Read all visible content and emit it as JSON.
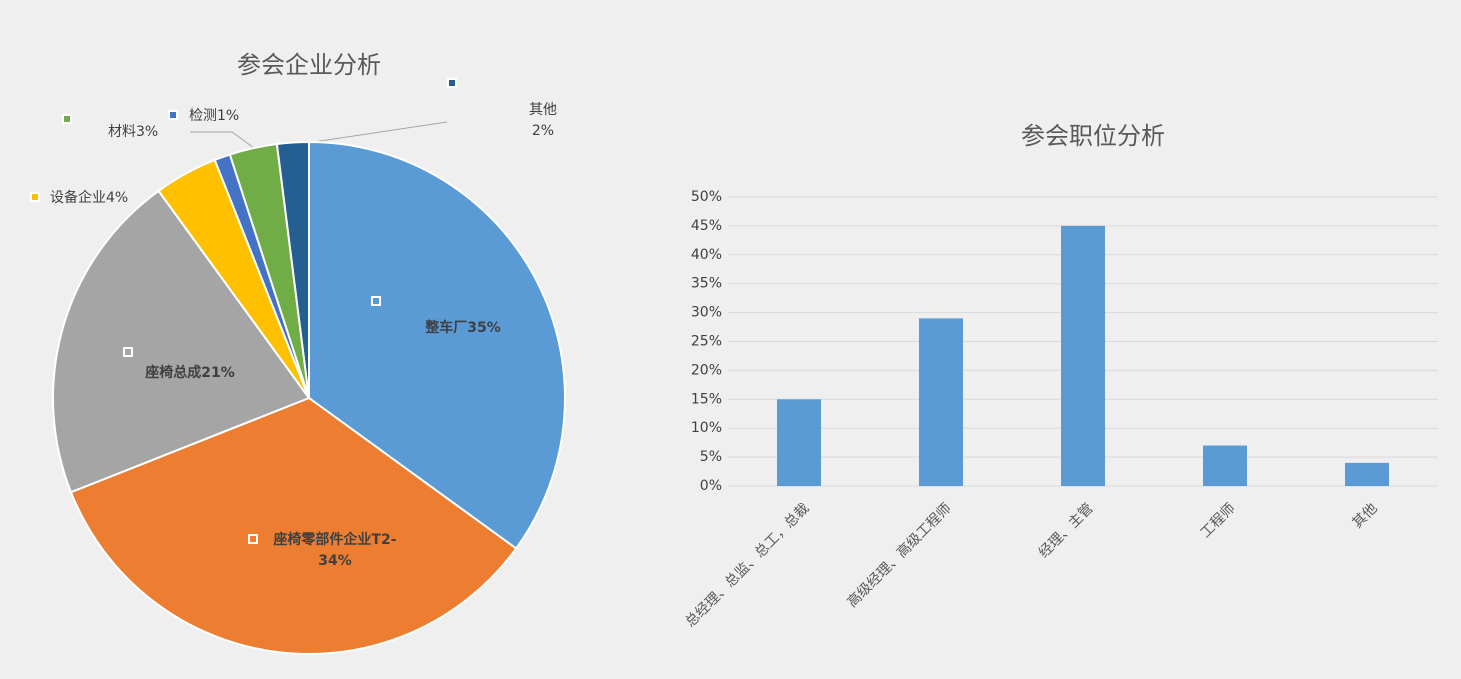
{
  "chart_data": [
    {
      "type": "pie",
      "title": "参会企业分析",
      "categories": [
        "整车厂",
        "座椅零部件企业T2-",
        "座椅总成",
        "设备企业",
        "检测",
        "材料",
        "其他"
      ],
      "values": [
        35,
        34,
        21,
        4,
        1,
        3,
        2
      ],
      "value_labels": [
        "35%",
        "34%",
        "21%",
        "4%",
        "1%",
        "3%",
        "2%"
      ],
      "colors": [
        "#5b9bd5",
        "#ed7d31",
        "#a5a5a5",
        "#ffc000",
        "#4472c4",
        "#70ad47",
        "#255e91"
      ]
    },
    {
      "type": "bar",
      "title": "参会职位分析",
      "categories": [
        "总经理、总监、总工，总裁",
        "高级经理、高级工程师",
        "经理、主管",
        "工程师",
        "其他"
      ],
      "values": [
        15,
        29,
        45,
        7,
        4
      ],
      "color": "#5b9bd5",
      "ylim": [
        0,
        50
      ],
      "yticks": [
        {
          "value": 0,
          "label": "0%"
        },
        {
          "value": 5,
          "label": "5%"
        },
        {
          "value": 10,
          "label": "10%"
        },
        {
          "value": 15,
          "label": "15%"
        },
        {
          "value": 20,
          "label": "20%"
        },
        {
          "value": 25,
          "label": "25%"
        },
        {
          "value": 30,
          "label": "30%"
        },
        {
          "value": 35,
          "label": "35%"
        },
        {
          "value": 40,
          "label": "40%"
        },
        {
          "value": 45,
          "label": "45%"
        },
        {
          "value": 50,
          "label": "50%"
        }
      ],
      "grid": true
    }
  ]
}
